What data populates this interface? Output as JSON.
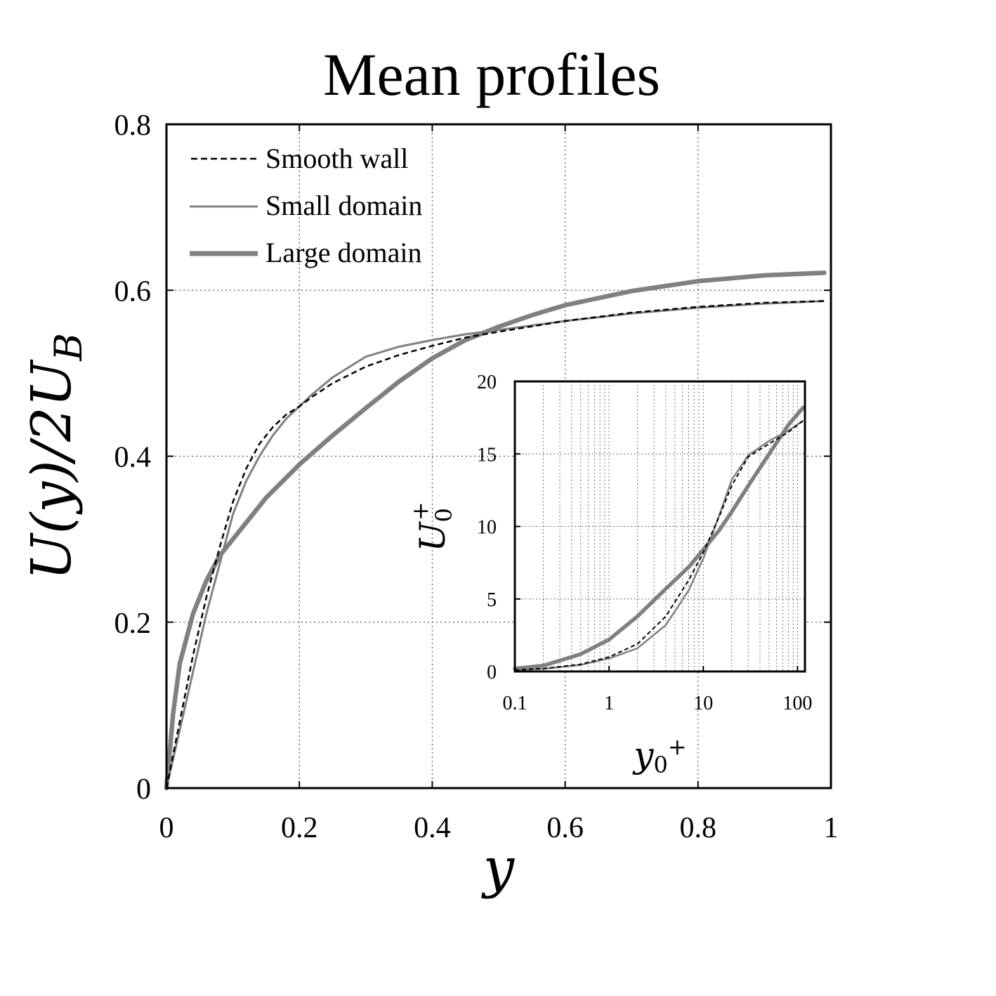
{
  "chart_data": [
    {
      "type": "line",
      "title": "Mean profiles",
      "xlabel": "y",
      "ylabel": "U(y)/2U",
      "ylabel_sub": "B",
      "xlim": [
        0,
        1
      ],
      "ylim": [
        0,
        0.8
      ],
      "xticks": [
        0,
        0.2,
        0.4,
        0.6,
        0.8,
        1
      ],
      "xtick_labels": [
        "0",
        "0.2",
        "0.4",
        "0.6",
        "0.8",
        "1"
      ],
      "yticks": [
        0,
        0.2,
        0.4,
        0.6,
        0.8
      ],
      "ytick_labels": [
        "0",
        "0.2",
        "0.4",
        "0.6",
        "0.8"
      ],
      "grid": true,
      "legend_position": "top-left",
      "series": [
        {
          "name": "Smooth wall",
          "style": "dashed",
          "color": "#000000",
          "x": [
            0,
            0.02,
            0.04,
            0.06,
            0.08,
            0.1,
            0.12,
            0.14,
            0.16,
            0.18,
            0.2,
            0.22,
            0.25,
            0.3,
            0.35,
            0.4,
            0.45,
            0.5,
            0.6,
            0.7,
            0.8,
            0.9,
            0.99
          ],
          "values": [
            0,
            0.08,
            0.16,
            0.23,
            0.29,
            0.345,
            0.385,
            0.415,
            0.435,
            0.45,
            0.46,
            0.472,
            0.488,
            0.508,
            0.522,
            0.533,
            0.543,
            0.55,
            0.563,
            0.573,
            0.58,
            0.585,
            0.587
          ]
        },
        {
          "name": "Small domain",
          "style": "solid",
          "color": "#808080",
          "x": [
            0,
            0.02,
            0.04,
            0.06,
            0.08,
            0.1,
            0.12,
            0.14,
            0.16,
            0.18,
            0.2,
            0.22,
            0.25,
            0.3,
            0.35,
            0.4,
            0.45,
            0.5,
            0.6,
            0.7,
            0.8,
            0.9,
            0.99
          ],
          "values": [
            0,
            0.07,
            0.14,
            0.21,
            0.27,
            0.33,
            0.37,
            0.4,
            0.425,
            0.445,
            0.46,
            0.475,
            0.495,
            0.52,
            0.532,
            0.54,
            0.547,
            0.552,
            0.563,
            0.572,
            0.579,
            0.584,
            0.587
          ]
        },
        {
          "name": "Large domain",
          "style": "solid-thick",
          "color": "#808080",
          "x": [
            0,
            0.01,
            0.02,
            0.04,
            0.06,
            0.08,
            0.1,
            0.15,
            0.2,
            0.25,
            0.3,
            0.35,
            0.4,
            0.45,
            0.5,
            0.55,
            0.6,
            0.7,
            0.8,
            0.9,
            0.99
          ],
          "values": [
            0,
            0.09,
            0.15,
            0.21,
            0.25,
            0.28,
            0.3,
            0.35,
            0.39,
            0.425,
            0.458,
            0.49,
            0.518,
            0.54,
            0.556,
            0.57,
            0.582,
            0.599,
            0.611,
            0.618,
            0.621
          ]
        }
      ]
    },
    {
      "type": "line",
      "title": "",
      "xlabel": "y",
      "xlabel_sub": "0",
      "xlabel_sup": "+",
      "ylabel": "U",
      "ylabel_sub": "0",
      "ylabel_sup": "+",
      "xscale": "log",
      "xlim": [
        0.1,
        120
      ],
      "ylim": [
        0,
        20
      ],
      "xticks": [
        0.1,
        1,
        10,
        100
      ],
      "xtick_labels": [
        "0.1",
        "1",
        "10",
        "100"
      ],
      "yticks": [
        0,
        5,
        10,
        15,
        20
      ],
      "ytick_labels": [
        "0",
        "5",
        "10",
        "15",
        "20"
      ],
      "grid": true,
      "series": [
        {
          "name": "Smooth wall",
          "style": "dashed",
          "color": "#000000",
          "x": [
            0.1,
            0.2,
            0.5,
            1,
            2,
            4,
            7,
            10,
            15,
            20,
            30,
            50,
            80,
            115
          ],
          "values": [
            0.1,
            0.2,
            0.5,
            1.0,
            1.9,
            3.8,
            6.3,
            8.2,
            10.8,
            12.8,
            14.8,
            15.7,
            16.5,
            17.3
          ]
        },
        {
          "name": "Small domain",
          "style": "solid",
          "color": "#808080",
          "x": [
            0.1,
            0.2,
            0.5,
            1,
            2,
            4,
            7,
            10,
            15,
            20,
            30,
            50,
            80,
            115
          ],
          "values": [
            0.1,
            0.18,
            0.45,
            0.9,
            1.6,
            3.2,
            5.6,
            7.8,
            10.9,
            13.2,
            14.9,
            15.9,
            16.6,
            17.3
          ]
        },
        {
          "name": "Large domain",
          "style": "solid-thick",
          "color": "#808080",
          "x": [
            0.1,
            0.2,
            0.5,
            1,
            2,
            4,
            7,
            10,
            15,
            20,
            30,
            50,
            80,
            115
          ],
          "values": [
            0.2,
            0.4,
            1.2,
            2.2,
            3.8,
            5.7,
            7.2,
            8.4,
            9.8,
            11.0,
            12.8,
            15.0,
            17.0,
            18.2
          ]
        }
      ]
    }
  ]
}
